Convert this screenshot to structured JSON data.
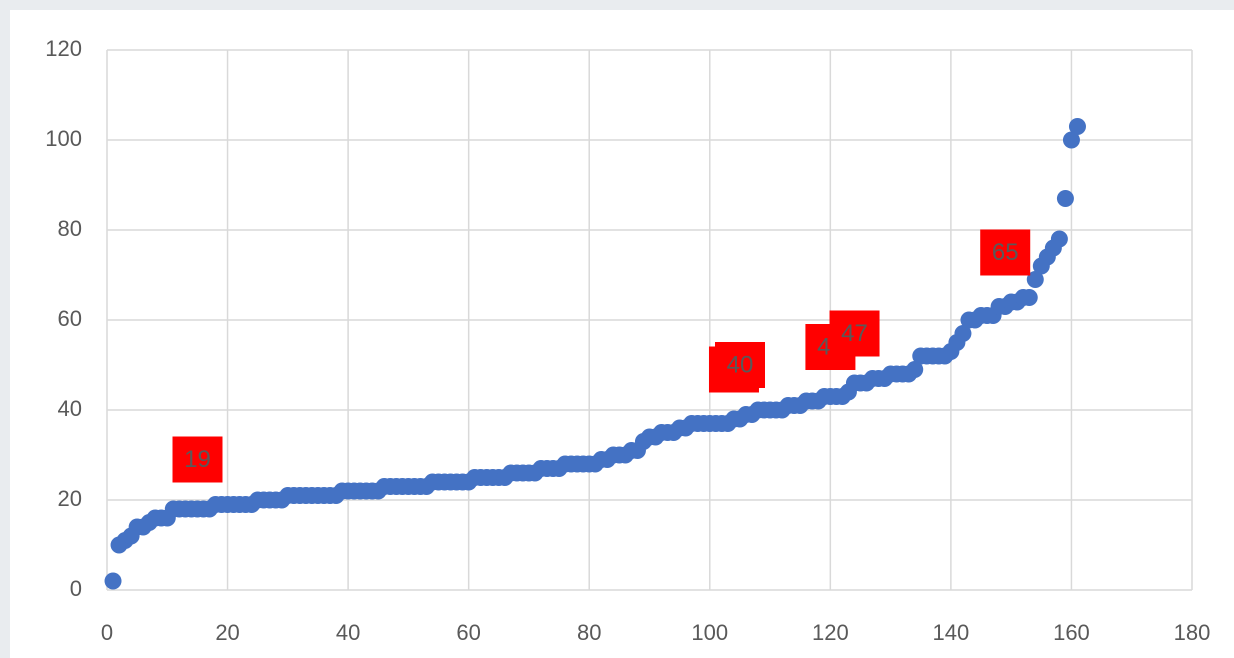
{
  "chart_data": {
    "type": "scatter",
    "x": [
      1,
      2,
      3,
      4,
      5,
      6,
      7,
      8,
      9,
      10,
      11,
      12,
      13,
      14,
      15,
      16,
      17,
      18,
      19,
      20,
      21,
      22,
      23,
      24,
      25,
      26,
      27,
      28,
      29,
      30,
      31,
      32,
      33,
      34,
      35,
      36,
      37,
      38,
      39,
      40,
      41,
      42,
      43,
      44,
      45,
      46,
      47,
      48,
      49,
      50,
      51,
      52,
      53,
      54,
      55,
      56,
      57,
      58,
      59,
      60,
      61,
      62,
      63,
      64,
      65,
      66,
      67,
      68,
      69,
      70,
      71,
      72,
      73,
      74,
      75,
      76,
      77,
      78,
      79,
      80,
      81,
      82,
      83,
      84,
      85,
      86,
      87,
      88,
      89,
      90,
      91,
      92,
      93,
      94,
      95,
      96,
      97,
      98,
      99,
      100,
      101,
      102,
      103,
      104,
      105,
      106,
      107,
      108,
      109,
      110,
      111,
      112,
      113,
      114,
      115,
      116,
      117,
      118,
      119,
      120,
      121,
      122,
      123,
      124,
      125,
      126,
      127,
      128,
      129,
      130,
      131,
      132,
      133,
      134,
      135,
      136,
      137,
      138,
      139,
      140,
      141,
      142,
      143,
      144,
      145,
      146,
      147,
      148,
      149,
      150,
      151,
      152,
      153,
      154,
      155,
      156,
      157,
      158,
      159,
      160,
      161
    ],
    "values": [
      2,
      10,
      11,
      12,
      14,
      14,
      15,
      16,
      16,
      16,
      18,
      18,
      18,
      18,
      18,
      18,
      18,
      19,
      19,
      19,
      19,
      19,
      19,
      19,
      20,
      20,
      20,
      20,
      20,
      21,
      21,
      21,
      21,
      21,
      21,
      21,
      21,
      21,
      22,
      22,
      22,
      22,
      22,
      22,
      22,
      23,
      23,
      23,
      23,
      23,
      23,
      23,
      23,
      24,
      24,
      24,
      24,
      24,
      24,
      24,
      25,
      25,
      25,
      25,
      25,
      25,
      26,
      26,
      26,
      26,
      26,
      27,
      27,
      27,
      27,
      28,
      28,
      28,
      28,
      28,
      28,
      29,
      29,
      30,
      30,
      30,
      31,
      31,
      33,
      34,
      34,
      35,
      35,
      35,
      36,
      36,
      37,
      37,
      37,
      37,
      37,
      37,
      37,
      38,
      38,
      39,
      39,
      40,
      40,
      40,
      40,
      40,
      41,
      41,
      41,
      42,
      42,
      42,
      43,
      43,
      43,
      43,
      44,
      46,
      46,
      46,
      47,
      47,
      47,
      48,
      48,
      48,
      48,
      49,
      52,
      52,
      52,
      52,
      52,
      53,
      55,
      57,
      60,
      60,
      61,
      61,
      61,
      63,
      63,
      64,
      64,
      65,
      65,
      69,
      72,
      74,
      76,
      78,
      87,
      100,
      103
    ],
    "value_labels": [
      null,
      null,
      null,
      null,
      null,
      null,
      null,
      null,
      null,
      null,
      null,
      null,
      null,
      null,
      null,
      null,
      null,
      "19",
      null,
      null,
      null,
      null,
      null,
      null,
      null,
      null,
      null,
      null,
      null,
      null,
      null,
      null,
      null,
      null,
      null,
      null,
      null,
      null,
      null,
      null,
      null,
      null,
      null,
      null,
      null,
      null,
      null,
      null,
      null,
      null,
      null,
      null,
      null,
      null,
      null,
      null,
      null,
      null,
      null,
      null,
      null,
      null,
      null,
      null,
      null,
      null,
      null,
      null,
      null,
      null,
      null,
      null,
      null,
      null,
      null,
      null,
      null,
      null,
      null,
      null,
      null,
      null,
      null,
      null,
      null,
      null,
      null,
      null,
      null,
      null,
      null,
      null,
      null,
      null,
      null,
      null,
      null,
      null,
      null,
      null,
      null,
      null,
      null,
      null,
      null,
      null,
      "39",
      "40",
      null,
      null,
      null,
      null,
      null,
      null,
      null,
      null,
      null,
      null,
      null,
      null,
      null,
      null,
      "44",
      null,
      null,
      null,
      "47",
      null,
      null,
      null,
      null,
      null,
      null,
      null,
      null,
      null,
      null,
      null,
      null,
      null,
      null,
      null,
      null,
      null,
      null,
      null,
      null,
      null,
      null,
      null,
      null,
      "65",
      null,
      null,
      null,
      null,
      null,
      null,
      null,
      null,
      null
    ],
    "color": "#4472c4",
    "label_color": "#ff0000",
    "xlim": [
      0,
      180
    ],
    "xticks": [
      0,
      20,
      40,
      60,
      80,
      100,
      120,
      140,
      160,
      180
    ],
    "ylim": [
      0,
      120
    ],
    "yticks": [
      0,
      20,
      40,
      60,
      80,
      100,
      120
    ],
    "grid": true
  }
}
